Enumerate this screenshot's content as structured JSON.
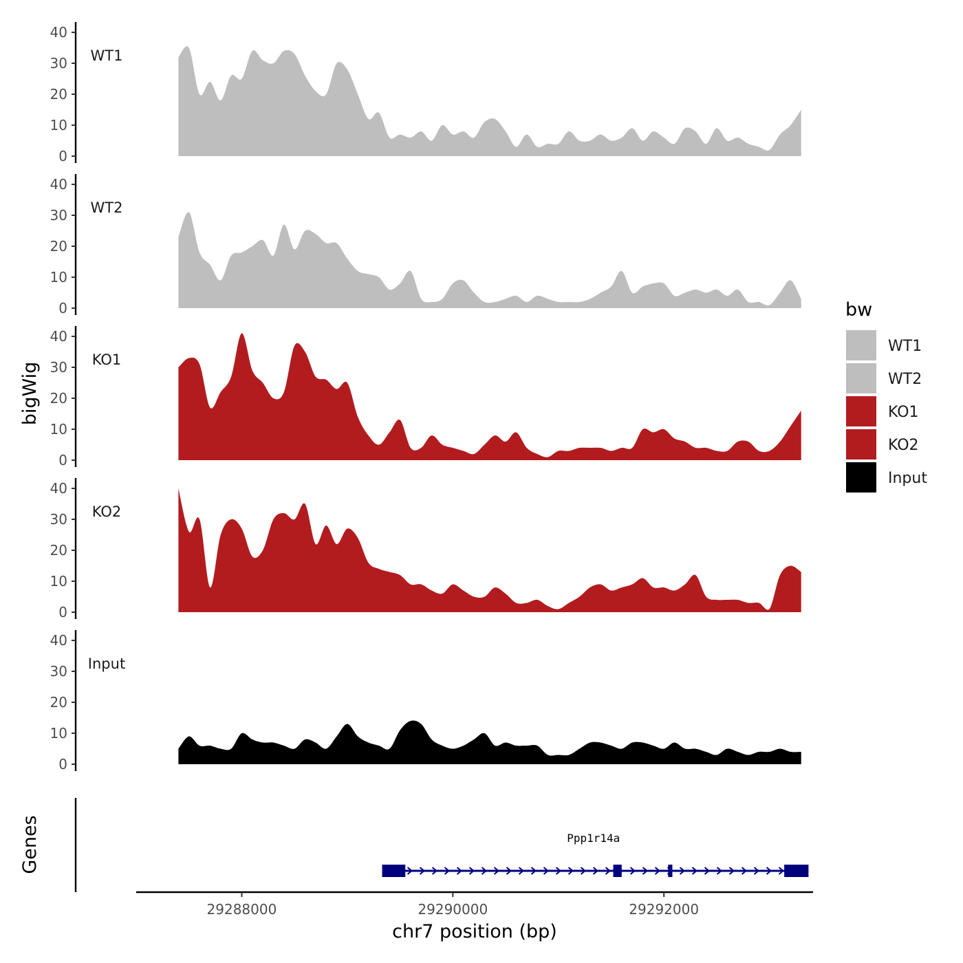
{
  "chart_data": {
    "type": "area",
    "title": "",
    "xlabel": "chr7 position (bp)",
    "ylabel": "bigWig",
    "gene_track_label": "Genes",
    "xlim": [
      29287000,
      29293400
    ],
    "ylim": [
      0,
      42
    ],
    "y_ticks": [
      0,
      10,
      20,
      30,
      40
    ],
    "x_ticks": [
      29288000,
      29290000,
      29292000
    ],
    "x_tick_labels": [
      "29288000",
      "29290000",
      "29292000"
    ],
    "legend": {
      "title": "bw",
      "placement": "right",
      "entries": [
        {
          "name": "WT1",
          "color": "#bebebe"
        },
        {
          "name": "WT2",
          "color": "#bebebe"
        },
        {
          "name": "KO1",
          "color": "#b21c1f"
        },
        {
          "name": "KO2",
          "color": "#b21c1f"
        },
        {
          "name": "Input",
          "color": "#000000"
        }
      ]
    },
    "x": [
      29287400,
      29287500,
      29287600,
      29287700,
      29287800,
      29287900,
      29288000,
      29288100,
      29288200,
      29288300,
      29288400,
      29288500,
      29288600,
      29288700,
      29288800,
      29288900,
      29289000,
      29289100,
      29289200,
      29289300,
      29289400,
      29289500,
      29289600,
      29289700,
      29289800,
      29289900,
      29290000,
      29290100,
      29290200,
      29290300,
      29290400,
      29290500,
      29290600,
      29290700,
      29290800,
      29290900,
      29291000,
      29291100,
      29291200,
      29291300,
      29291400,
      29291500,
      29291600,
      29291700,
      29291800,
      29291900,
      29292000,
      29292100,
      29292200,
      29292300,
      29292400,
      29292500,
      29292600,
      29292700,
      29292800,
      29292900,
      29293000,
      29293100,
      29293200,
      29293300
    ],
    "series": [
      {
        "name": "WT1",
        "color": "#bebebe",
        "values": [
          32,
          35,
          20,
          24,
          18,
          26,
          25,
          34,
          31,
          30,
          34,
          33,
          26,
          21,
          20,
          30,
          28,
          20,
          12,
          14,
          6,
          7,
          6,
          8,
          5,
          10,
          7,
          8,
          6,
          11,
          12,
          8,
          3,
          7,
          3,
          4,
          4,
          8,
          5,
          5,
          7,
          5,
          6,
          9,
          5,
          8,
          6,
          4,
          9,
          8,
          4,
          9,
          5,
          6,
          4,
          3,
          2,
          7,
          10,
          15
        ]
      },
      {
        "name": "WT2",
        "color": "#bebebe",
        "values": [
          23,
          31,
          18,
          14,
          9,
          17,
          18,
          20,
          22,
          17,
          27,
          19,
          25,
          24,
          21,
          21,
          16,
          12,
          11,
          10,
          6,
          8,
          12,
          3,
          2,
          3,
          8,
          9,
          5,
          2,
          2,
          3,
          4,
          2,
          4,
          3,
          2,
          2,
          2,
          3,
          5,
          7,
          12,
          5,
          7,
          8,
          8,
          4,
          5,
          6,
          5,
          6,
          4,
          6,
          2,
          2,
          1,
          5,
          9,
          3
        ]
      },
      {
        "name": "KO1",
        "color": "#b21c1f",
        "values": [
          30,
          33,
          31,
          17,
          22,
          27,
          41,
          29,
          25,
          20,
          22,
          37,
          35,
          27,
          26,
          23,
          25,
          14,
          8,
          5,
          9,
          13,
          4,
          4,
          8,
          5,
          4,
          3,
          2,
          5,
          8,
          6,
          9,
          4,
          2,
          1,
          3,
          3,
          4,
          4,
          4,
          3,
          4,
          4,
          10,
          9,
          10,
          7,
          6,
          4,
          4,
          3,
          3,
          6,
          6,
          3,
          3,
          6,
          11,
          16
        ]
      },
      {
        "name": "KO2",
        "color": "#b21c1f",
        "values": [
          40,
          26,
          30,
          8,
          25,
          30,
          27,
          18,
          20,
          30,
          32,
          30,
          35,
          22,
          28,
          22,
          27,
          24,
          16,
          14,
          13,
          12,
          9,
          9,
          7,
          6,
          9,
          7,
          5,
          5,
          8,
          6,
          3,
          3,
          4,
          2,
          1,
          3,
          5,
          8,
          9,
          7,
          8,
          9,
          11,
          8,
          8,
          7,
          9,
          12,
          5,
          4,
          4,
          4,
          3,
          3,
          1,
          12,
          15,
          13
        ]
      },
      {
        "name": "Input",
        "color": "#000000",
        "values": [
          5,
          9,
          6,
          6,
          5,
          5,
          10,
          8,
          7,
          7,
          6,
          5,
          8,
          7,
          5,
          9,
          13,
          9,
          7,
          6,
          5,
          11,
          14,
          13,
          8,
          6,
          5,
          6,
          8,
          10,
          6,
          7,
          6,
          6,
          6,
          3,
          3,
          3,
          5,
          7,
          7,
          6,
          5,
          7,
          7,
          6,
          5,
          7,
          5,
          5,
          4,
          3,
          5,
          4,
          3,
          4,
          4,
          5,
          4,
          4
        ]
      }
    ],
    "genes": [
      {
        "name": "Ppp1r14a",
        "strand": "+",
        "start": 29289330,
        "end": 29293370,
        "color": "#00007f",
        "exons": [
          [
            29289330,
            29289550
          ],
          [
            29291520,
            29291600
          ],
          [
            29292040,
            29292080
          ],
          [
            29293140,
            29293370
          ]
        ]
      }
    ]
  }
}
